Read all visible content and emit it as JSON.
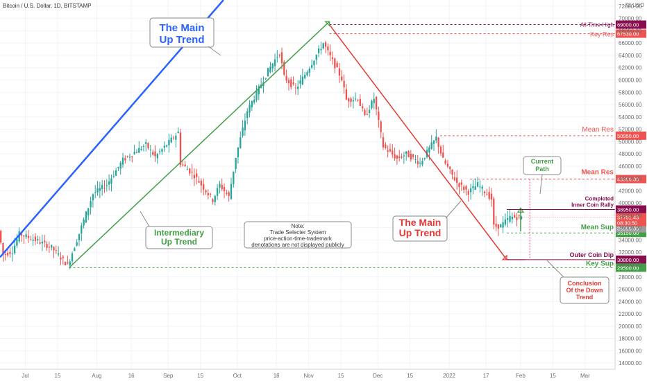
{
  "header": {
    "title": "Bitcoin / U.S. Dollar, 1D, BITSTAMP"
  },
  "colors": {
    "up": "#26a69a",
    "down": "#ef5350",
    "blue": "#2962ff",
    "green": "#43a047",
    "red": "#e53935",
    "maroon": "#880e4f",
    "res": "#ef5350",
    "sup": "#43a047",
    "pink": "#ec407a"
  },
  "chart_data": {
    "type": "candlestick",
    "title": "Bitcoin / U.S. Dollar, 1D, BITSTAMP",
    "y_unit": "USD",
    "ylim": [
      13000,
      73000
    ],
    "y_ticks": [
      14000,
      16000,
      18000,
      20000,
      22000,
      24000,
      26000,
      28000,
      30000,
      32000,
      34000,
      36000,
      38000,
      40000,
      42000,
      44000,
      46000,
      48000,
      50000,
      52000,
      54000,
      56000,
      58000,
      60000,
      62000,
      64000,
      66000,
      68000,
      70000,
      72000
    ],
    "y_unit_label": "USD",
    "x_range": [
      "2021-06-20",
      "2022-03-14"
    ],
    "x_ticks": [
      {
        "label": "Jul",
        "date": "2021-07-01"
      },
      {
        "label": "15",
        "date": "2021-07-15"
      },
      {
        "label": "Aug",
        "date": "2021-08-01"
      },
      {
        "label": "16",
        "date": "2021-08-16"
      },
      {
        "label": "Sep",
        "date": "2021-09-01"
      },
      {
        "label": "15",
        "date": "2021-09-15"
      },
      {
        "label": "Oct",
        "date": "2021-10-01"
      },
      {
        "label": "18",
        "date": "2021-10-18"
      },
      {
        "label": "Nov",
        "date": "2021-11-01"
      },
      {
        "label": "15",
        "date": "2021-11-15"
      },
      {
        "label": "Dec",
        "date": "2021-12-01"
      },
      {
        "label": "15",
        "date": "2021-12-15"
      },
      {
        "label": "2022",
        "date": "2022-01-01"
      },
      {
        "label": "17",
        "date": "2022-01-17"
      },
      {
        "label": "Feb",
        "date": "2022-02-01"
      },
      {
        "label": "15",
        "date": "2022-02-15"
      },
      {
        "label": "Mar",
        "date": "2022-03-01"
      }
    ],
    "price_anchors": [
      [
        "2021-06-20",
        35500
      ],
      [
        "2021-06-22",
        31600
      ],
      [
        "2021-06-26",
        32200
      ],
      [
        "2021-06-29",
        35000
      ],
      [
        "2021-07-06",
        34000
      ],
      [
        "2021-07-13",
        32800
      ],
      [
        "2021-07-20",
        29900
      ],
      [
        "2021-07-24",
        34000
      ],
      [
        "2021-07-31",
        41500
      ],
      [
        "2021-08-06",
        43000
      ],
      [
        "2021-08-13",
        47000
      ],
      [
        "2021-08-23",
        49500
      ],
      [
        "2021-08-27",
        47500
      ],
      [
        "2021-09-06",
        51500
      ],
      [
        "2021-09-07",
        46500
      ],
      [
        "2021-09-13",
        44500
      ],
      [
        "2021-09-21",
        40500
      ],
      [
        "2021-09-24",
        43000
      ],
      [
        "2021-09-28",
        41000
      ],
      [
        "2021-10-01",
        47500
      ],
      [
        "2021-10-06",
        55000
      ],
      [
        "2021-10-15",
        61500
      ],
      [
        "2021-10-20",
        64500
      ],
      [
        "2021-10-22",
        60500
      ],
      [
        "2021-10-27",
        58500
      ],
      [
        "2021-11-01",
        61500
      ],
      [
        "2021-11-08",
        66000
      ],
      [
        "2021-11-10",
        64500
      ],
      [
        "2021-11-16",
        60200
      ],
      [
        "2021-11-18",
        56800
      ],
      [
        "2021-11-23",
        57000
      ],
      [
        "2021-11-26",
        54000
      ],
      [
        "2021-11-30",
        57000
      ],
      [
        "2021-12-04",
        49200
      ],
      [
        "2021-12-10",
        47200
      ],
      [
        "2021-12-14",
        48000
      ],
      [
        "2021-12-20",
        46500
      ],
      [
        "2021-12-27",
        50600
      ],
      [
        "2021-12-30",
        47000
      ],
      [
        "2022-01-05",
        43300
      ],
      [
        "2022-01-10",
        41800
      ],
      [
        "2022-01-14",
        43000
      ],
      [
        "2022-01-20",
        40700
      ],
      [
        "2022-01-21",
        36200
      ],
      [
        "2022-01-24",
        36300
      ],
      [
        "2022-01-28",
        37700
      ],
      [
        "2022-02-02",
        37700
      ]
    ],
    "trendlines": [
      {
        "label": "The Main Up Trend",
        "from": [
          "2021-06-20",
          31200
        ],
        "to": [
          "2021-09-25",
          73000
        ]
      },
      {
        "label": "Intermediary Up Trend",
        "from": [
          "2021-07-20",
          29500
        ],
        "to": [
          "2021-11-10",
          69500
        ]
      },
      {
        "label": "The Main Up Trend",
        "from": [
          "2021-11-10",
          69000
        ],
        "to": [
          "2022-01-26",
          30800
        ]
      }
    ],
    "levels": [
      {
        "name": "All-Time-High",
        "price": 69000,
        "price_label": "69000.00",
        "color": "maroon",
        "from": "2021-11-10",
        "dash": true
      },
      {
        "name": "Key Res",
        "price": 67530,
        "price_label": "67530.00",
        "color": "res",
        "from": "2021-11-10",
        "dash": true
      },
      {
        "name": "Mean Res",
        "price": 50950,
        "price_label": "50950.00",
        "color": "res",
        "from": "2021-12-28",
        "dash": true
      },
      {
        "name": "Mean Res",
        "price": 43900,
        "price_label": "43900.00",
        "color": "res",
        "from": "2022-01-10",
        "dash": true
      },
      {
        "name": "Completed Inner Coin Rally",
        "price": 38950,
        "price_label": "38950.00",
        "color": "maroon",
        "from": "2022-01-26",
        "dash": false
      },
      {
        "name": "Mean Sup",
        "price": 35150,
        "price_label": "35150.00",
        "color": "sup",
        "from": "2022-01-26",
        "dash": true
      },
      {
        "name": "Outer Coin Dip",
        "price": 30800,
        "price_label": "30800.00",
        "color": "maroon",
        "from": "2022-01-26",
        "dash": false
      },
      {
        "name": "Key Sup",
        "price": 29500,
        "price_label": "29500.00",
        "color": "sup",
        "from": "2021-07-20",
        "dash": true
      }
    ],
    "last_price": {
      "price": 37701.43,
      "label": "37701.43",
      "countdown": "08:30:50",
      "extra_label": "36900.00"
    },
    "current_path": {
      "label": "Current Path",
      "from": [
        "2022-02-01",
        35400
      ],
      "to": [
        "2022-02-01",
        39200
      ]
    },
    "conclusion_path": {
      "from": [
        "2022-02-05",
        43900
      ],
      "to": [
        "2022-02-05",
        30800
      ]
    }
  },
  "annotations": {
    "main_up_trend": "The Main\nUp Trend",
    "intermediary": "Intermediary\nUp Trend",
    "main_down_trend": "The Main\nUp Trend",
    "note": "Note:\nTrade Selecter System\nprice-action-time-trademark\ndenotations are not displayed publicly",
    "current_path": "Current\nPath",
    "conclusion": "Conclusion\nOf the Down\nTrend",
    "completed_rally": "Completed\nInner Coin Rally",
    "all_time_high": "All-Time-High",
    "key_res": "Key Res",
    "mean_res": "Mean Res",
    "mean_res_2": "Mean Res",
    "mean_sup": "Mean Sup",
    "outer_coin_dip": "Outer Coin Dip",
    "key_sup": "Key Sup"
  }
}
